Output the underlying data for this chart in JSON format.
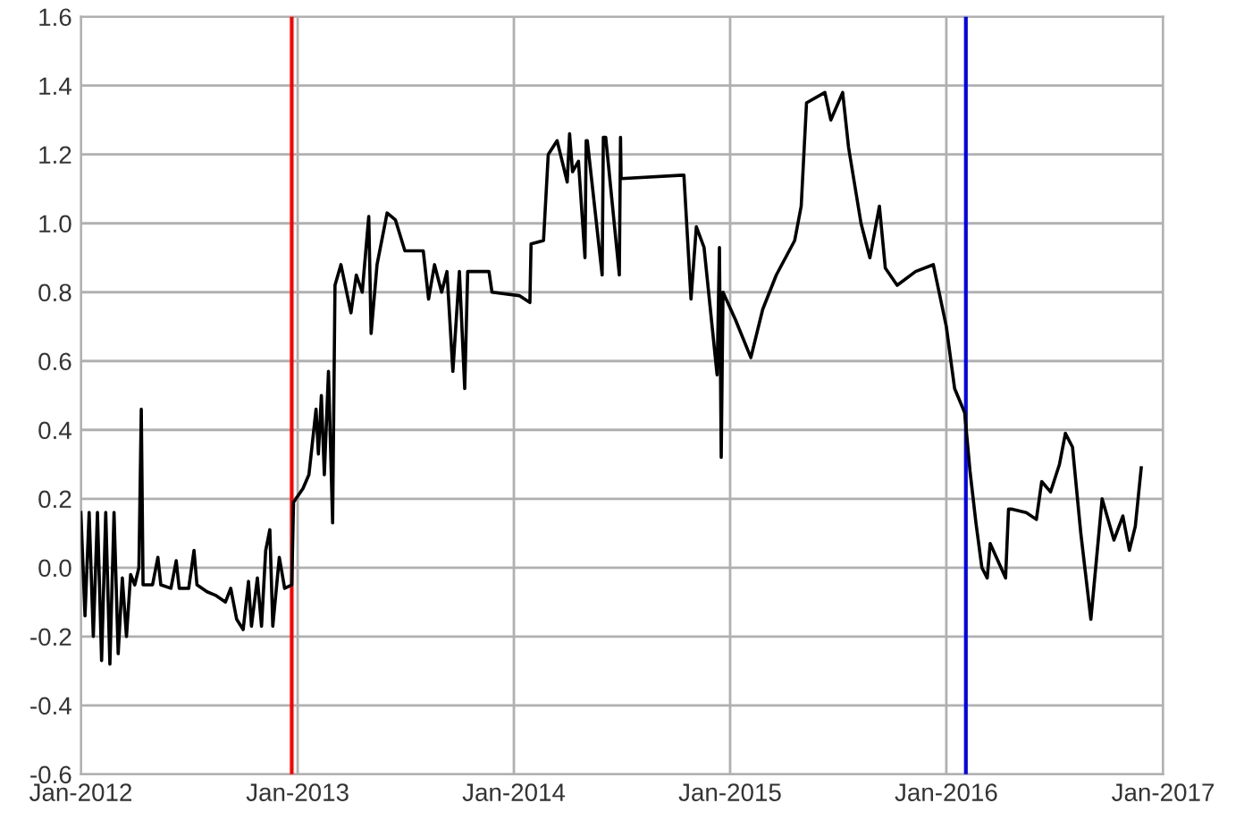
{
  "chart_data": {
    "type": "line",
    "x": [
      "2012-01-01",
      "2012-01-08",
      "2012-01-15",
      "2012-01-22",
      "2012-01-29",
      "2012-02-05",
      "2012-02-12",
      "2012-02-19",
      "2012-02-26",
      "2012-03-04",
      "2012-03-11",
      "2012-03-18",
      "2012-03-25",
      "2012-04-01",
      "2012-04-08",
      "2012-04-12",
      "2012-04-15",
      "2012-05-01",
      "2012-05-10",
      "2012-05-15",
      "2012-06-01",
      "2012-06-10",
      "2012-06-15",
      "2012-07-01",
      "2012-07-10",
      "2012-07-15",
      "2012-08-01",
      "2012-08-15",
      "2012-09-01",
      "2012-09-10",
      "2012-09-20",
      "2012-10-01",
      "2012-10-10",
      "2012-10-15",
      "2012-10-25",
      "2012-11-01",
      "2012-11-08",
      "2012-11-15",
      "2012-11-20",
      "2012-12-01",
      "2012-12-10",
      "2012-12-22",
      "2012-12-25",
      "2013-01-10",
      "2013-01-20",
      "2013-02-01",
      "2013-02-05",
      "2013-02-10",
      "2013-02-15",
      "2013-02-22",
      "2013-03-01",
      "2013-03-05",
      "2013-03-15",
      "2013-04-01",
      "2013-04-10",
      "2013-04-20",
      "2013-05-01",
      "2013-05-05",
      "2013-05-15",
      "2013-06-01",
      "2013-06-15",
      "2013-07-01",
      "2013-08-01",
      "2013-08-10",
      "2013-08-20",
      "2013-09-01",
      "2013-09-10",
      "2013-09-20",
      "2013-10-01",
      "2013-10-10",
      "2013-10-15",
      "2013-11-20",
      "2013-11-25",
      "2014-01-10",
      "2014-01-28",
      "2014-01-30",
      "2014-02-20",
      "2014-02-28",
      "2014-03-15",
      "2014-04-01",
      "2014-04-05",
      "2014-04-10",
      "2014-04-20",
      "2014-05-01",
      "2014-05-03",
      "2014-05-05",
      "2014-05-30",
      "2014-06-01",
      "2014-06-05",
      "2014-06-28",
      "2014-06-30",
      "2014-07-01",
      "2014-10-15",
      "2014-10-27",
      "2014-11-05",
      "2014-11-18",
      "2014-12-10",
      "2014-12-14",
      "2014-12-17",
      "2014-12-20",
      "2015-01-10",
      "2015-02-05",
      "2015-02-25",
      "2015-03-20",
      "2015-04-20",
      "2015-05-01",
      "2015-05-10",
      "2015-06-10",
      "2015-06-20",
      "2015-07-10",
      "2015-07-20",
      "2015-08-10",
      "2015-08-25",
      "2015-09-10",
      "2015-09-20",
      "2015-10-10",
      "2015-11-10",
      "2015-12-10",
      "2016-01-01",
      "2016-01-15",
      "2016-02-01",
      "2016-02-10",
      "2016-02-20",
      "2016-03-01",
      "2016-03-10",
      "2016-03-15",
      "2016-04-10",
      "2016-04-15",
      "2016-04-20",
      "2016-05-15",
      "2016-06-01",
      "2016-06-10",
      "2016-06-25",
      "2016-07-10",
      "2016-07-20",
      "2016-08-01",
      "2016-08-15",
      "2016-09-01",
      "2016-09-20",
      "2016-10-10",
      "2016-10-25",
      "2016-11-05",
      "2016-11-15",
      "2016-11-25"
    ],
    "series": [
      {
        "color": "#000000",
        "values": [
          0.16,
          -0.14,
          0.16,
          -0.2,
          0.16,
          -0.27,
          0.16,
          -0.28,
          0.16,
          -0.25,
          -0.03,
          -0.2,
          -0.02,
          -0.05,
          0.0,
          0.46,
          -0.05,
          -0.05,
          0.03,
          -0.05,
          -0.06,
          0.02,
          -0.06,
          -0.06,
          0.05,
          -0.05,
          -0.07,
          -0.08,
          -0.1,
          -0.06,
          -0.15,
          -0.18,
          -0.04,
          -0.17,
          -0.03,
          -0.17,
          0.05,
          0.11,
          -0.17,
          0.03,
          -0.06,
          -0.05,
          0.19,
          0.23,
          0.27,
          0.46,
          0.33,
          0.5,
          0.27,
          0.57,
          0.13,
          0.82,
          0.88,
          0.74,
          0.85,
          0.8,
          1.02,
          0.68,
          0.88,
          1.03,
          1.01,
          0.92,
          0.92,
          0.78,
          0.88,
          0.8,
          0.86,
          0.57,
          0.86,
          0.52,
          0.86,
          0.86,
          0.8,
          0.79,
          0.77,
          0.94,
          0.95,
          1.2,
          1.24,
          1.12,
          1.26,
          1.15,
          1.18,
          0.9,
          1.24,
          1.24,
          0.85,
          1.25,
          1.25,
          0.85,
          1.25,
          1.13,
          1.14,
          0.78,
          0.99,
          0.93,
          0.56,
          0.93,
          0.32,
          0.8,
          0.72,
          0.61,
          0.75,
          0.85,
          0.95,
          1.05,
          1.35,
          1.38,
          1.3,
          1.38,
          1.22,
          1.0,
          0.9,
          1.05,
          0.87,
          0.82,
          0.86,
          0.88,
          0.7,
          0.52,
          0.45,
          0.28,
          0.13,
          0.0,
          -0.03,
          0.07,
          -0.03,
          0.17,
          0.17,
          0.16,
          0.14,
          0.25,
          0.22,
          0.3,
          0.39,
          0.35,
          0.1,
          -0.15,
          0.2,
          0.08,
          0.15,
          0.05,
          0.12,
          0.29
        ]
      }
    ],
    "xlim": [
      "2012-01-01",
      "2017-01-01"
    ],
    "xticks": [
      {
        "value": "2012-01-01",
        "label": "Jan-2012"
      },
      {
        "value": "2013-01-01",
        "label": "Jan-2013"
      },
      {
        "value": "2014-01-01",
        "label": "Jan-2014"
      },
      {
        "value": "2015-01-01",
        "label": "Jan-2015"
      },
      {
        "value": "2016-01-01",
        "label": "Jan-2016"
      },
      {
        "value": "2017-01-01",
        "label": "Jan-2017"
      }
    ],
    "ylim": [
      -0.6,
      1.6
    ],
    "yticks": [
      {
        "value": -0.6,
        "label": "-0.6"
      },
      {
        "value": -0.4,
        "label": "-0.4"
      },
      {
        "value": -0.2,
        "label": "-0.2"
      },
      {
        "value": 0,
        "label": "0.0"
      },
      {
        "value": 0.2,
        "label": "0.2"
      },
      {
        "value": 0.4,
        "label": "0.4"
      },
      {
        "value": 0.6,
        "label": "0.6"
      },
      {
        "value": 0.8,
        "label": "0.8"
      },
      {
        "value": 1,
        "label": "1.0"
      },
      {
        "value": 1.2,
        "label": "1.2"
      },
      {
        "value": 1.4,
        "label": "1.4"
      },
      {
        "value": 1.6,
        "label": "1.6"
      }
    ],
    "ref_lines": [
      {
        "axis": "x",
        "value": "2012-12-22",
        "color": "#ff0000"
      },
      {
        "axis": "x",
        "value": "2016-02-03",
        "color": "#0000ff"
      }
    ],
    "grid": true
  }
}
